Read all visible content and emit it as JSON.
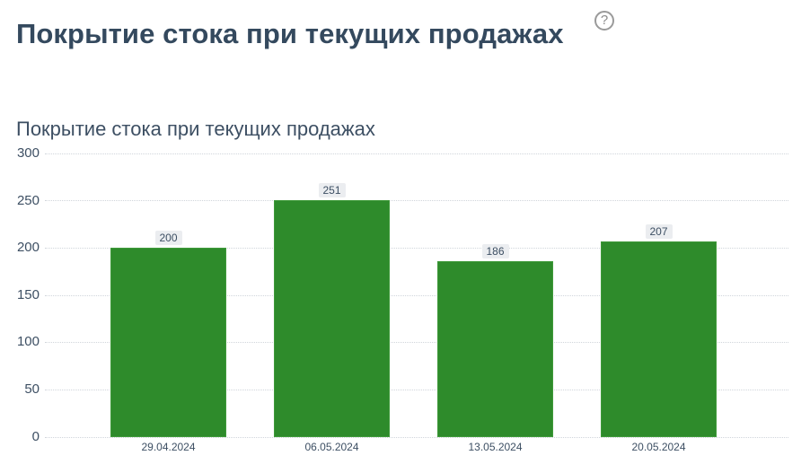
{
  "header": {
    "title": "Покрытие стока при текущих продажах",
    "help_icon": "question-circle-icon"
  },
  "chart_data": {
    "type": "bar",
    "title": "Покрытие стока при текущих продажах",
    "categories": [
      "29.04.2024",
      "06.05.2024",
      "13.05.2024",
      "20.05.2024"
    ],
    "values": [
      200,
      251,
      186,
      207
    ],
    "xlabel": "",
    "ylabel": "",
    "ylim": [
      0,
      300
    ],
    "yticks": [
      "0",
      "50",
      "100",
      "150",
      "200",
      "250",
      "300"
    ],
    "grid": true,
    "legend": "none",
    "bar_color": "#2e8b2b",
    "data_labels": [
      "200",
      "251",
      "186",
      "207"
    ]
  }
}
